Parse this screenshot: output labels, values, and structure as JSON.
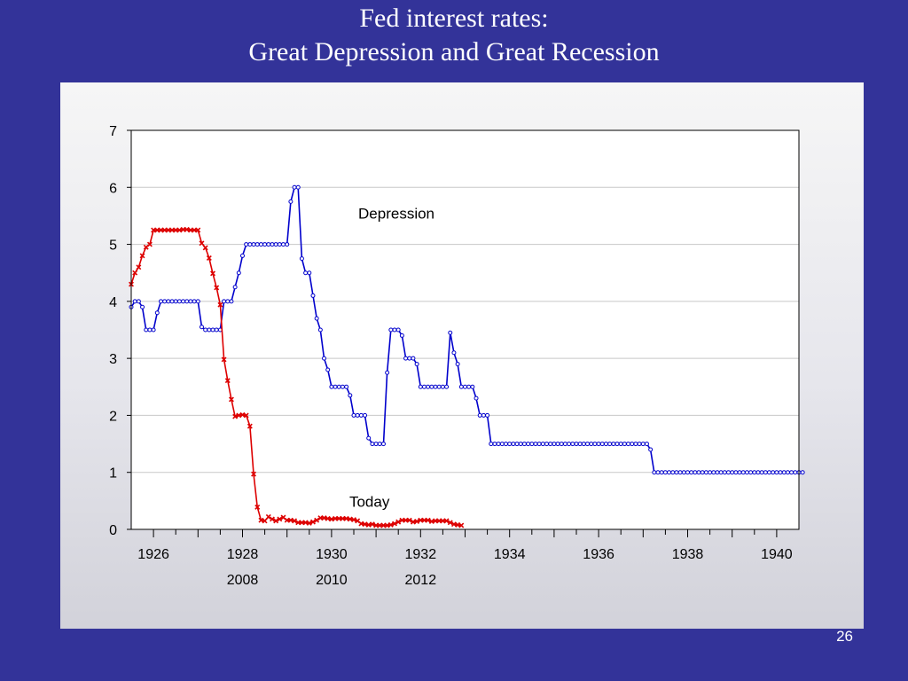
{
  "slide": {
    "title_line1": "Fed interest rates:",
    "title_line2": "Great Depression and Great Recession",
    "page_number": "26"
  },
  "colors": {
    "background": "#333399",
    "depression_series": "#0000cc",
    "today_series": "#dd0000"
  },
  "chart_data": {
    "type": "line",
    "title": "",
    "xlabel": "",
    "ylabel": "",
    "xlim": [
      1925.5,
      1940.5
    ],
    "ylim": [
      0,
      7
    ],
    "yticks": [
      0,
      1,
      2,
      3,
      4,
      5,
      6,
      7
    ],
    "grid": true,
    "x_tick_labels": [
      {
        "x": 1926,
        "label": "1926"
      },
      {
        "x": 1928,
        "label": "1928"
      },
      {
        "x": 1930,
        "label": "1930"
      },
      {
        "x": 1932,
        "label": "1932"
      },
      {
        "x": 1934,
        "label": "1934"
      },
      {
        "x": 1936,
        "label": "1936"
      },
      {
        "x": 1938,
        "label": "1938"
      },
      {
        "x": 1940,
        "label": "1940"
      }
    ],
    "secondary_x_labels": [
      {
        "x": 1928,
        "label": "2008"
      },
      {
        "x": 1930,
        "label": "2010"
      },
      {
        "x": 1932,
        "label": "2012"
      }
    ],
    "annotations": [
      {
        "text": "Depression",
        "x": 1930.6,
        "y": 5.45
      },
      {
        "text": "Today",
        "x": 1930.4,
        "y": 0.4
      }
    ],
    "series": [
      {
        "name": "Depression",
        "marker": "circle",
        "x_start": 1925.5,
        "step": 0.08333,
        "values": [
          3.9,
          4.0,
          4.0,
          3.9,
          3.5,
          3.5,
          3.5,
          3.8,
          4.0,
          4.0,
          4.0,
          4.0,
          4.0,
          4.0,
          4.0,
          4.0,
          4.0,
          4.0,
          4.0,
          3.55,
          3.5,
          3.5,
          3.5,
          3.5,
          3.5,
          4.0,
          4.0,
          4.0,
          4.25,
          4.5,
          4.8,
          5.0,
          5.0,
          5.0,
          5.0,
          5.0,
          5.0,
          5.0,
          5.0,
          5.0,
          5.0,
          5.0,
          5.0,
          5.75,
          6.0,
          6.0,
          4.75,
          4.5,
          4.5,
          4.1,
          3.7,
          3.5,
          3.0,
          2.8,
          2.5,
          2.5,
          2.5,
          2.5,
          2.5,
          2.35,
          2.0,
          2.0,
          2.0,
          2.0,
          1.6,
          1.5,
          1.5,
          1.5,
          1.5,
          2.75,
          3.5,
          3.5,
          3.5,
          3.4,
          3.0,
          3.0,
          3.0,
          2.9,
          2.5,
          2.5,
          2.5,
          2.5,
          2.5,
          2.5,
          2.5,
          2.5,
          3.45,
          3.1,
          2.9,
          2.5,
          2.5,
          2.5,
          2.5,
          2.3,
          2.0,
          2.0,
          2.0,
          1.5,
          1.5,
          1.5,
          1.5,
          1.5,
          1.5,
          1.5,
          1.5,
          1.5,
          1.5,
          1.5,
          1.5,
          1.5,
          1.5,
          1.5,
          1.5,
          1.5,
          1.5,
          1.5,
          1.5,
          1.5,
          1.5,
          1.5,
          1.5,
          1.5,
          1.5,
          1.5,
          1.5,
          1.5,
          1.5,
          1.5,
          1.5,
          1.5,
          1.5,
          1.5,
          1.5,
          1.5,
          1.5,
          1.5,
          1.5,
          1.5,
          1.5,
          1.5,
          1.4,
          1.0,
          1.0,
          1.0,
          1.0,
          1.0,
          1.0,
          1.0,
          1.0,
          1.0,
          1.0,
          1.0,
          1.0,
          1.0,
          1.0,
          1.0,
          1.0,
          1.0,
          1.0,
          1.0,
          1.0,
          1.0,
          1.0,
          1.0,
          1.0,
          1.0,
          1.0,
          1.0,
          1.0,
          1.0,
          1.0,
          1.0,
          1.0,
          1.0,
          1.0,
          1.0,
          1.0,
          1.0,
          1.0,
          1.0,
          1.0,
          1.0
        ]
      },
      {
        "name": "Today",
        "marker": "x",
        "x_start": 1925.5,
        "step": 0.08333,
        "values": [
          4.3,
          4.5,
          4.6,
          4.8,
          4.95,
          5.0,
          5.25,
          5.25,
          5.25,
          5.25,
          5.25,
          5.25,
          5.25,
          5.25,
          5.26,
          5.26,
          5.25,
          5.25,
          5.25,
          5.02,
          4.94,
          4.76,
          4.49,
          4.24,
          3.94,
          2.98,
          2.61,
          2.28,
          1.98,
          2.0,
          2.01,
          2.0,
          1.81,
          0.97,
          0.39,
          0.16,
          0.15,
          0.22,
          0.18,
          0.15,
          0.18,
          0.21,
          0.16,
          0.16,
          0.15,
          0.12,
          0.12,
          0.12,
          0.11,
          0.13,
          0.16,
          0.2,
          0.2,
          0.19,
          0.18,
          0.19,
          0.19,
          0.19,
          0.19,
          0.18,
          0.17,
          0.15,
          0.1,
          0.09,
          0.08,
          0.09,
          0.07,
          0.07,
          0.07,
          0.07,
          0.08,
          0.1,
          0.13,
          0.16,
          0.16,
          0.16,
          0.13,
          0.14,
          0.16,
          0.16,
          0.16,
          0.14,
          0.15,
          0.15,
          0.15,
          0.15,
          0.12,
          0.09,
          0.08,
          0.07
        ]
      }
    ]
  }
}
